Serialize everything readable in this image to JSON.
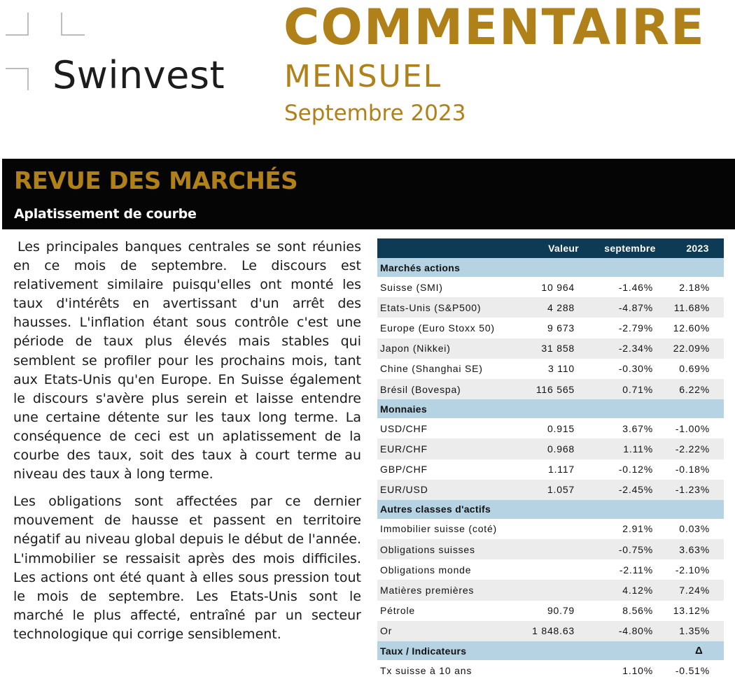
{
  "brand": "Swinvest",
  "header": {
    "title_line1": "COMMENTAIRE",
    "title_line2": "MENSUEL",
    "period": "Septembre 2023"
  },
  "banner": {
    "title": "REVUE DES MARCHÉS",
    "subtitle": "Aplatissement de courbe"
  },
  "article": {
    "paragraphs": [
      "Les principales banques centrales se sont réunies en ce mois de septembre. Le discours est relativement similaire puisqu'elles ont monté les taux d'intérêts en avertissant d'un arrêt des hausses. L'inflation étant sous contrôle c'est une période de taux plus élevés mais stables qui semblent se profiler pour les prochains mois, tant aux Etats-Unis qu'en Europe. En Suisse également le discours s'avère plus serein et laisse entendre une certaine détente sur les taux long terme. La conséquence de ceci est un aplatissement de la courbe des taux, soit des taux à court terme au niveau des taux à long terme.",
      "Les obligations sont affectées par ce dernier mouvement de hausse et passent en territoire négatif au niveau global depuis le début de l'année. L'immobilier se ressaisit après des mois difficiles. Les actions ont été quant à elles sous pression tout le mois de septembre. Les Etats-Unis sont le marché le plus affecté, entraîné par un secteur technologique qui corrige sensiblement."
    ]
  },
  "table": {
    "columns": [
      "",
      "Valeur",
      "septembre",
      "2023"
    ],
    "sections": [
      {
        "title": "Marchés actions",
        "extra": "",
        "rows": [
          [
            "Suisse (SMI)",
            "10 964",
            "-1.46%",
            "2.18%"
          ],
          [
            "Etats-Unis (S&P500)",
            "4 288",
            "-4.87%",
            "11.68%"
          ],
          [
            "Europe (Euro Stoxx 50)",
            "9 673",
            "-2.79%",
            "12.60%"
          ],
          [
            "Japon (Nikkei)",
            "31 858",
            "-2.34%",
            "22.09%"
          ],
          [
            "Chine (Shanghai SE)",
            "3 110",
            "-0.30%",
            "0.69%"
          ],
          [
            "Brésil (Bovespa)",
            "116 565",
            "0.71%",
            "6.22%"
          ]
        ]
      },
      {
        "title": "Monnaies",
        "extra": "",
        "rows": [
          [
            "USD/CHF",
            "0.915",
            "3.67%",
            "-1.00%"
          ],
          [
            "EUR/CHF",
            "0.968",
            "1.11%",
            "-2.22%"
          ],
          [
            "GBP/CHF",
            "1.117",
            "-0.12%",
            "-0.18%"
          ],
          [
            "EUR/USD",
            "1.057",
            "-2.45%",
            "-1.23%"
          ]
        ]
      },
      {
        "title": "Autres classes d'actifs",
        "extra": "",
        "rows": [
          [
            "Immobilier suisse (coté)",
            "",
            "2.91%",
            "0.03%"
          ],
          [
            "Obligations suisses",
            "",
            "-0.75%",
            "3.63%"
          ],
          [
            "Obligations monde",
            "",
            "-2.11%",
            "-2.10%"
          ],
          [
            "Matières premières",
            "",
            "4.12%",
            "7.24%"
          ],
          [
            "Pétrole",
            "90.79",
            "8.56%",
            "13.12%"
          ],
          [
            "Or",
            "1 848.63",
            "-4.80%",
            "1.35%"
          ]
        ]
      },
      {
        "title": "Taux / Indicateurs",
        "extra": "Δ",
        "rows": [
          [
            "Tx suisse à 10 ans",
            "",
            "1.10%",
            "-0.51%"
          ]
        ]
      }
    ]
  }
}
